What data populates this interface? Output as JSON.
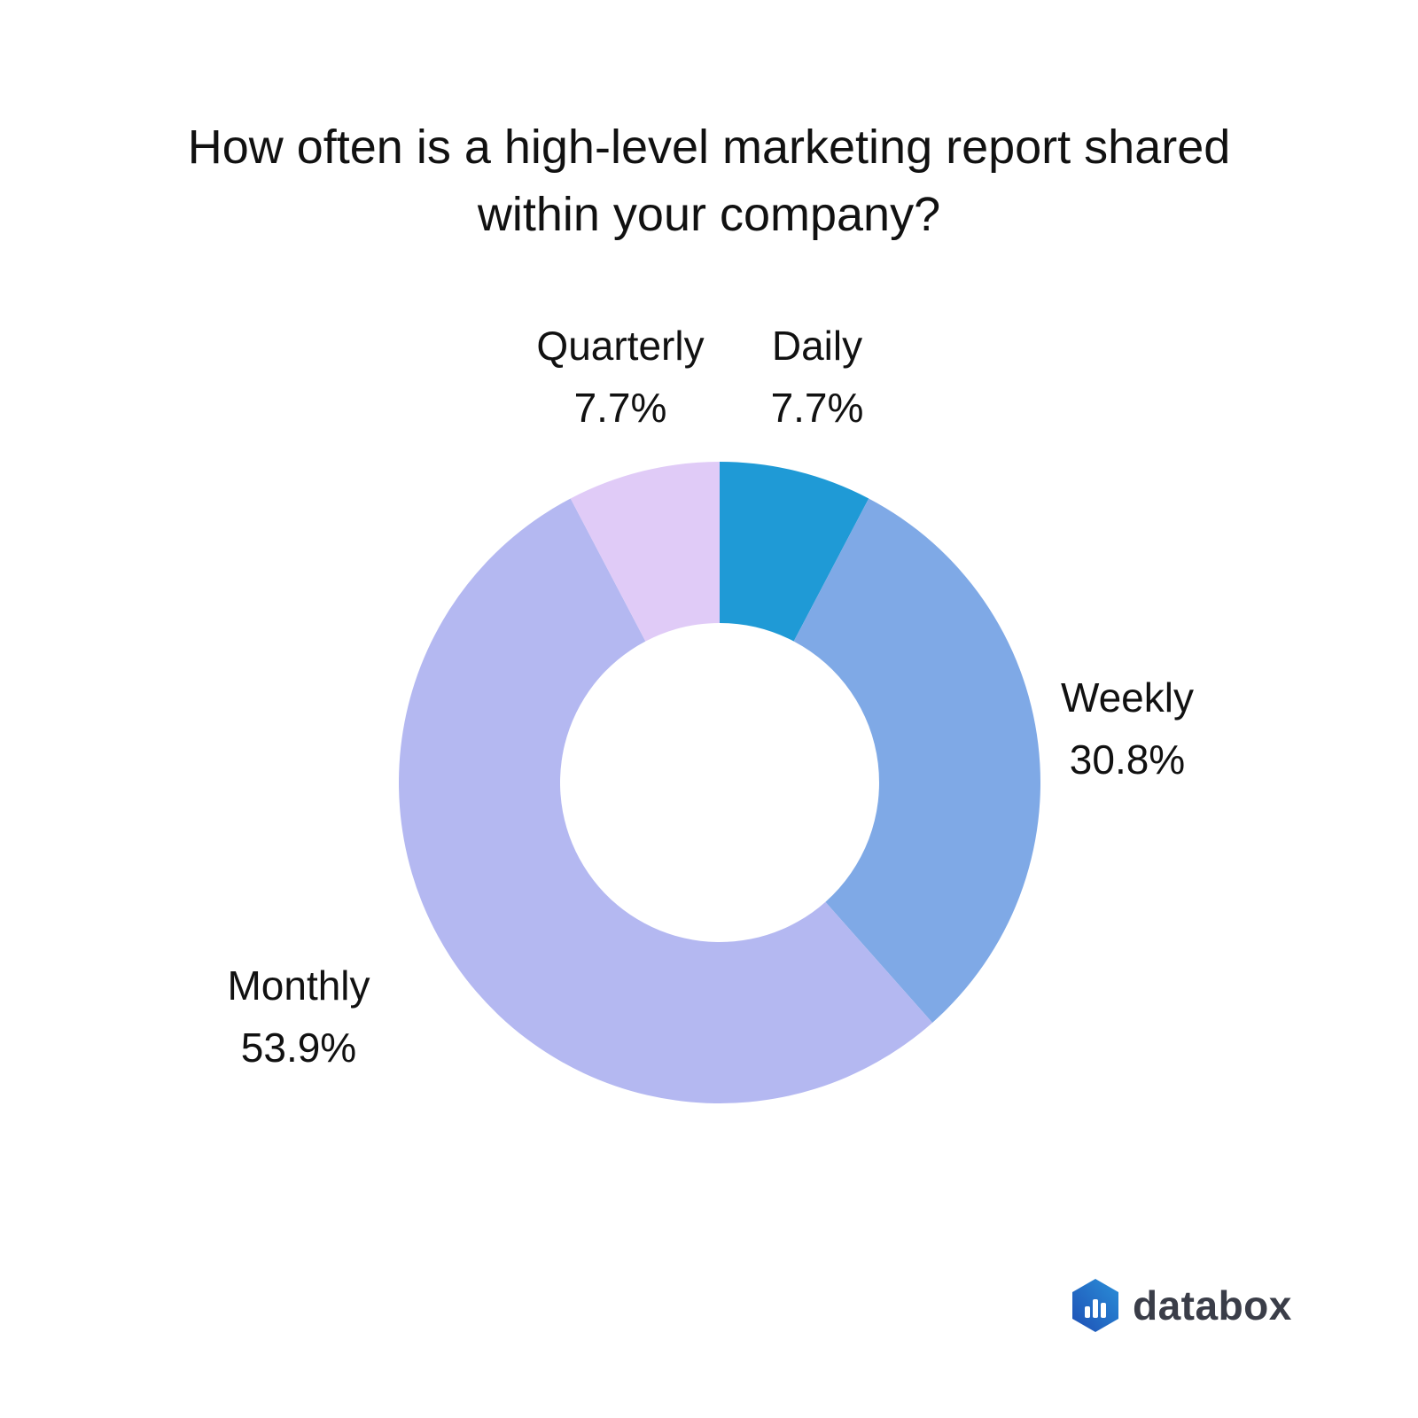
{
  "chart_data": {
    "type": "pie",
    "title_lines": [
      "How often is a high-level marketing report shared",
      "within your company?"
    ],
    "slices": [
      {
        "label": "Daily",
        "value": 7.7,
        "value_label": "7.7%",
        "color": "#1f9ad6"
      },
      {
        "label": "Weekly",
        "value": 30.8,
        "value_label": "30.8%",
        "color": "#7fa9e6"
      },
      {
        "label": "Monthly",
        "value": 53.9,
        "value_label": "53.9%",
        "color": "#b4b8f1"
      },
      {
        "label": "Quarterly",
        "value": 7.7,
        "value_label": "7.7%",
        "color": "#e0cbf7"
      }
    ],
    "donut": true,
    "start_angle_deg": 0,
    "direction": "clockwise"
  },
  "brand": {
    "name": "databox",
    "icon": "databox-logo-icon",
    "icon_colors": [
      "#1e4fb5",
      "#2a8fd8"
    ]
  }
}
